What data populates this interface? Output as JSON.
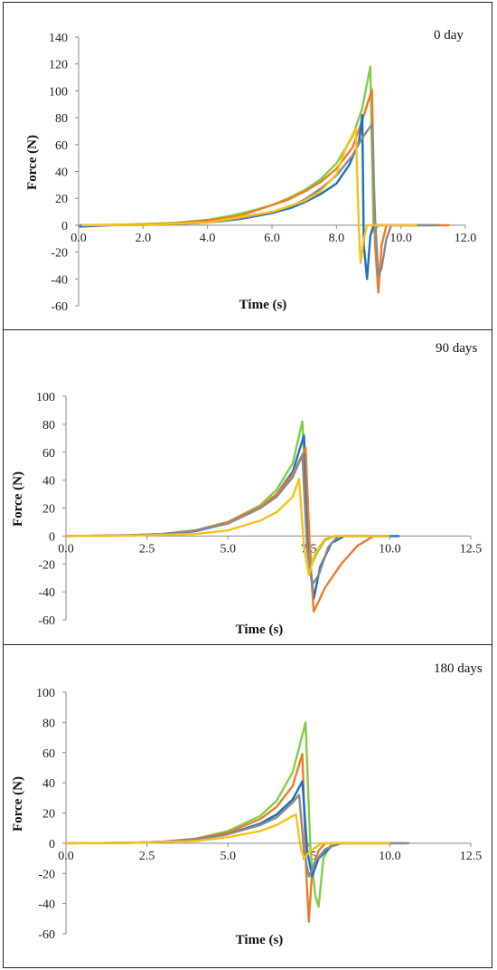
{
  "series_colors": [
    "#1f6fc0",
    "#ef7a2a",
    "#8a8a8a",
    "#f5c217",
    "#7fcf45"
  ],
  "chart_data": [
    {
      "type": "line",
      "title": "0 day",
      "xlabel": "Time (s)",
      "ylabel": "Force (N)",
      "xlim": [
        0,
        12
      ],
      "ylim": [
        -60,
        140
      ],
      "xticks": [
        "0.0",
        "2.0",
        "4.0",
        "6.0",
        "8.0",
        "10.0",
        "12.0"
      ],
      "yticks": [
        "-60",
        "-40",
        "-20",
        "0",
        "20",
        "40",
        "60",
        "80",
        "100",
        "120",
        "140"
      ],
      "grid": false,
      "series": [
        {
          "color": "#7fcf45",
          "points": [
            [
              0.1,
              0
            ],
            [
              1,
              0.3
            ],
            [
              2,
              0.8
            ],
            [
              3,
              1.8
            ],
            [
              4,
              4
            ],
            [
              4.8,
              7.5
            ],
            [
              5.5,
              11.5
            ],
            [
              6,
              15
            ],
            [
              6.5,
              20
            ],
            [
              7,
              26
            ],
            [
              7.5,
              34
            ],
            [
              8,
              46
            ],
            [
              8.5,
              66
            ],
            [
              8.8,
              87
            ],
            [
              9.05,
              118
            ],
            [
              9.15,
              -5
            ],
            [
              9.3,
              0
            ],
            [
              10.5,
              0
            ]
          ]
        },
        {
          "color": "#ef7a2a",
          "points": [
            [
              0.1,
              0
            ],
            [
              1,
              0.2
            ],
            [
              2,
              0.6
            ],
            [
              3,
              1.5
            ],
            [
              4,
              3.5
            ],
            [
              5,
              7
            ],
            [
              6,
              15
            ],
            [
              6.5,
              19
            ],
            [
              7,
              25
            ],
            [
              7.5,
              32
            ],
            [
              8,
              42
            ],
            [
              8.5,
              58
            ],
            [
              8.8,
              78
            ],
            [
              9.1,
              101
            ],
            [
              9.2,
              -15
            ],
            [
              9.3,
              -50
            ],
            [
              9.4,
              -15
            ],
            [
              9.55,
              0
            ],
            [
              11.5,
              0
            ]
          ]
        },
        {
          "color": "#1f6fc0",
          "points": [
            [
              0,
              0
            ],
            [
              0.05,
              -1
            ],
            [
              1,
              0
            ],
            [
              2,
              0.3
            ],
            [
              3,
              0.8
            ],
            [
              4,
              2
            ],
            [
              5,
              4.5
            ],
            [
              6,
              9
            ],
            [
              6.6,
              13
            ],
            [
              7,
              17
            ],
            [
              7.5,
              23
            ],
            [
              8,
              31
            ],
            [
              8.4,
              45
            ],
            [
              8.7,
              62
            ],
            [
              8.8,
              82
            ],
            [
              8.85,
              -15
            ],
            [
              8.95,
              -40
            ],
            [
              9.05,
              -8
            ],
            [
              9.15,
              0
            ],
            [
              11,
              0
            ]
          ]
        },
        {
          "color": "#8a8a8a",
          "points": [
            [
              0,
              0
            ],
            [
              1,
              0
            ],
            [
              2,
              0.3
            ],
            [
              3,
              0.8
            ],
            [
              4,
              2
            ],
            [
              5,
              5
            ],
            [
              6,
              10
            ],
            [
              6.6,
              14
            ],
            [
              7,
              19
            ],
            [
              7.5,
              27
            ],
            [
              8,
              37
            ],
            [
              8.5,
              52
            ],
            [
              8.8,
              65
            ],
            [
              9.1,
              75
            ],
            [
              9.2,
              5
            ],
            [
              9.3,
              -38
            ],
            [
              9.4,
              -32
            ],
            [
              9.55,
              -10
            ],
            [
              9.7,
              0
            ],
            [
              11.2,
              0
            ]
          ]
        },
        {
          "color": "#f5c217",
          "points": [
            [
              0.1,
              0
            ],
            [
              2,
              0.3
            ],
            [
              4,
              2
            ],
            [
              6,
              10
            ],
            [
              7,
              18
            ],
            [
              7.5,
              25
            ],
            [
              8,
              38
            ],
            [
              8.3,
              58
            ],
            [
              8.6,
              72
            ],
            [
              8.7,
              -5
            ],
            [
              8.75,
              -28
            ],
            [
              8.85,
              -10
            ],
            [
              8.95,
              0
            ],
            [
              10.5,
              0
            ]
          ]
        }
      ]
    },
    {
      "type": "line",
      "title": "90 days",
      "xlabel": "Time (s)",
      "ylabel": "Force (N)",
      "xlim": [
        0,
        12.5
      ],
      "ylim": [
        -60,
        100
      ],
      "xticks": [
        "0.0",
        "2.5",
        "5.0",
        "7.5",
        "10.0",
        "12.5"
      ],
      "yticks": [
        "-60",
        "-40",
        "-20",
        "0",
        "20",
        "40",
        "60",
        "80",
        "100"
      ],
      "grid": false,
      "series": [
        {
          "color": "#7fcf45",
          "points": [
            [
              0,
              0
            ],
            [
              1,
              0.2
            ],
            [
              2,
              0.5
            ],
            [
              3,
              1.5
            ],
            [
              4,
              4
            ],
            [
              5,
              10
            ],
            [
              6,
              22
            ],
            [
              6.5,
              33
            ],
            [
              7,
              52
            ],
            [
              7.3,
              82
            ],
            [
              7.5,
              -5
            ],
            [
              7.6,
              -20
            ],
            [
              7.75,
              -12
            ],
            [
              8,
              -3
            ],
            [
              8.3,
              0
            ],
            [
              10,
              0
            ]
          ]
        },
        {
          "color": "#1f6fc0",
          "points": [
            [
              0,
              0
            ],
            [
              1,
              0.2
            ],
            [
              2,
              0.5
            ],
            [
              3,
              1.5
            ],
            [
              4,
              3.5
            ],
            [
              5,
              9
            ],
            [
              6,
              20
            ],
            [
              6.5,
              30
            ],
            [
              7,
              46
            ],
            [
              7.35,
              72
            ],
            [
              7.5,
              -10
            ],
            [
              7.65,
              -45
            ],
            [
              7.85,
              -22
            ],
            [
              8.2,
              -5
            ],
            [
              8.6,
              0
            ],
            [
              10.3,
              0
            ]
          ]
        },
        {
          "color": "#ef7a2a",
          "points": [
            [
              0,
              0
            ],
            [
              1,
              0.2
            ],
            [
              2,
              0.6
            ],
            [
              3,
              1.5
            ],
            [
              4,
              4
            ],
            [
              5,
              10
            ],
            [
              6,
              21
            ],
            [
              6.5,
              30
            ],
            [
              7,
              44
            ],
            [
              7.4,
              63
            ],
            [
              7.55,
              -20
            ],
            [
              7.65,
              -54
            ],
            [
              7.8,
              -47
            ],
            [
              8,
              -37
            ],
            [
              8.5,
              -20
            ],
            [
              9,
              -7
            ],
            [
              9.5,
              0
            ],
            [
              10,
              0
            ]
          ]
        },
        {
          "color": "#8a8a8a",
          "points": [
            [
              0,
              0
            ],
            [
              1,
              0.2
            ],
            [
              2,
              0.5
            ],
            [
              3,
              1.5
            ],
            [
              4,
              4
            ],
            [
              5,
              9
            ],
            [
              6,
              20
            ],
            [
              6.5,
              28
            ],
            [
              7,
              42
            ],
            [
              7.3,
              58
            ],
            [
              7.45,
              -10
            ],
            [
              7.6,
              -35
            ],
            [
              7.8,
              -28
            ],
            [
              8.1,
              -8
            ],
            [
              8.4,
              0
            ],
            [
              10,
              0
            ]
          ]
        },
        {
          "color": "#f5c217",
          "points": [
            [
              0,
              0
            ],
            [
              2,
              0.2
            ],
            [
              4,
              1.5
            ],
            [
              5,
              4
            ],
            [
              6,
              11
            ],
            [
              6.5,
              17
            ],
            [
              7,
              28
            ],
            [
              7.2,
              41
            ],
            [
              7.35,
              -8
            ],
            [
              7.5,
              -28
            ],
            [
              7.7,
              -12
            ],
            [
              8,
              -2
            ],
            [
              8.3,
              0
            ],
            [
              10,
              0
            ]
          ]
        }
      ]
    },
    {
      "type": "line",
      "title": "180 days",
      "xlabel": "Time (s)",
      "ylabel": "Force (N)",
      "xlim": [
        0,
        12.5
      ],
      "ylim": [
        -60,
        100
      ],
      "xticks": [
        "0.0",
        "2.5",
        "5.0",
        "7.5",
        "10.0",
        "12.5"
      ],
      "yticks": [
        "-60",
        "-40",
        "-20",
        "0",
        "20",
        "40",
        "60",
        "80",
        "100"
      ],
      "grid": false,
      "series": [
        {
          "color": "#7fcf45",
          "points": [
            [
              0,
              0
            ],
            [
              2,
              0.3
            ],
            [
              3,
              1
            ],
            [
              4,
              3
            ],
            [
              5,
              8
            ],
            [
              6,
              18
            ],
            [
              6.5,
              28
            ],
            [
              7,
              47
            ],
            [
              7.4,
              80
            ],
            [
              7.55,
              -5
            ],
            [
              7.7,
              -35
            ],
            [
              7.8,
              -42
            ],
            [
              7.95,
              -10
            ],
            [
              8.2,
              0
            ],
            [
              10,
              0
            ]
          ]
        },
        {
          "color": "#ef7a2a",
          "points": [
            [
              0,
              0
            ],
            [
              2,
              0.3
            ],
            [
              3,
              1
            ],
            [
              4,
              3
            ],
            [
              5,
              7
            ],
            [
              6,
              16
            ],
            [
              6.5,
              24
            ],
            [
              7,
              38
            ],
            [
              7.3,
              59
            ],
            [
              7.42,
              -20
            ],
            [
              7.5,
              -52
            ],
            [
              7.6,
              -18
            ],
            [
              7.8,
              -5
            ],
            [
              8,
              0
            ],
            [
              10,
              0
            ]
          ]
        },
        {
          "color": "#1f6fc0",
          "points": [
            [
              0,
              0
            ],
            [
              2,
              0.3
            ],
            [
              3,
              1
            ],
            [
              4,
              2.5
            ],
            [
              5,
              6
            ],
            [
              6,
              13
            ],
            [
              6.5,
              19
            ],
            [
              7,
              29
            ],
            [
              7.3,
              41
            ],
            [
              7.45,
              -5
            ],
            [
              7.6,
              -22
            ],
            [
              7.8,
              -10
            ],
            [
              8.2,
              -2
            ],
            [
              8.5,
              0
            ],
            [
              10.5,
              0
            ]
          ]
        },
        {
          "color": "#8a8a8a",
          "points": [
            [
              0,
              0
            ],
            [
              2,
              0.3
            ],
            [
              3,
              1
            ],
            [
              4,
              2.5
            ],
            [
              5,
              6
            ],
            [
              6,
              12
            ],
            [
              6.5,
              17
            ],
            [
              7,
              27
            ],
            [
              7.2,
              32
            ],
            [
              7.35,
              -5
            ],
            [
              7.5,
              -22
            ],
            [
              7.7,
              -12
            ],
            [
              8,
              -4
            ],
            [
              8.4,
              0
            ],
            [
              10.6,
              0
            ]
          ]
        },
        {
          "color": "#f5c217",
          "points": [
            [
              0,
              0
            ],
            [
              2,
              0.2
            ],
            [
              4,
              1.5
            ],
            [
              5,
              4
            ],
            [
              6,
              8
            ],
            [
              6.5,
              12
            ],
            [
              7,
              18
            ],
            [
              7.1,
              19
            ],
            [
              7.25,
              -3
            ],
            [
              7.35,
              -10
            ],
            [
              7.55,
              -5
            ],
            [
              7.9,
              0
            ],
            [
              10,
              0
            ]
          ]
        }
      ]
    }
  ]
}
